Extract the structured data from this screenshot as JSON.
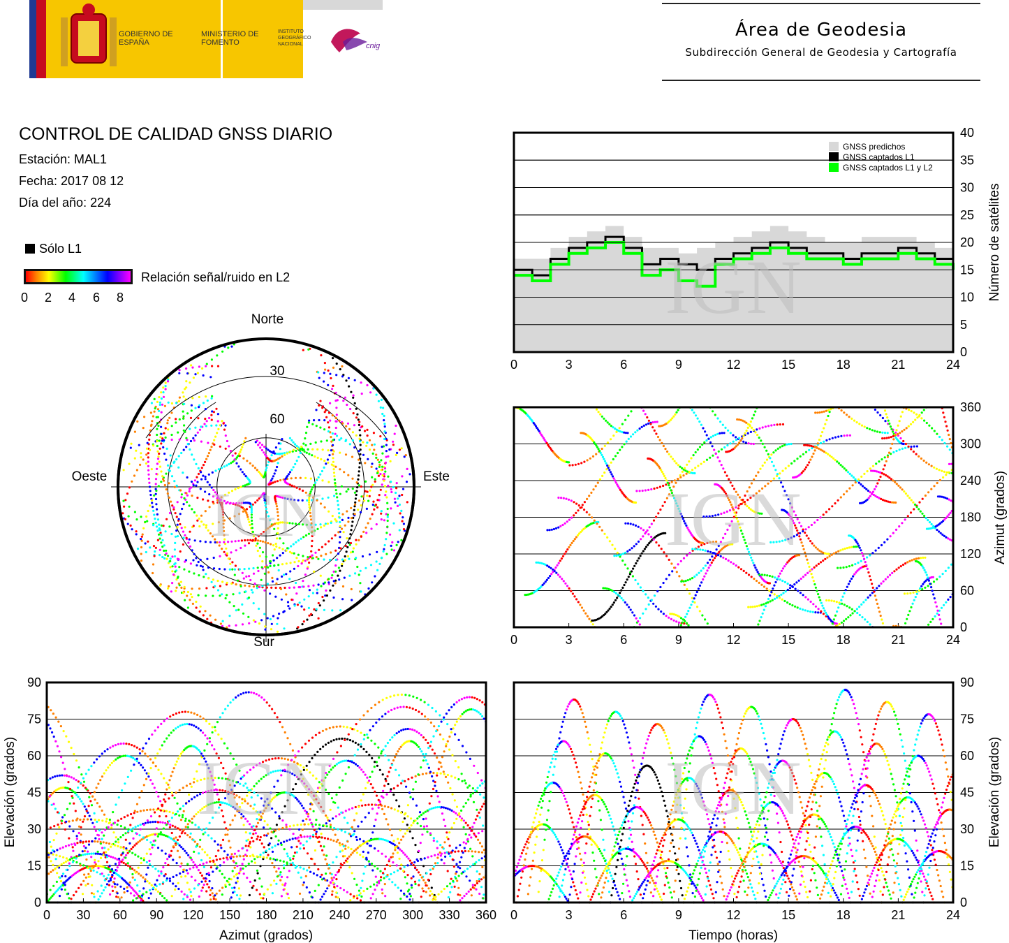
{
  "header": {
    "logo_gobierno": "GOBIERNO DE ESPAÑA",
    "logo_ministerio": "MINISTERIO DE FOMENTO",
    "logo_instituto": "INSTITUTO GEOGRÁFICO NACIONAL",
    "logo_cnig": "cnig",
    "area_title": "Área de Geodesia",
    "area_subtitle": "Subdirección General de Geodesia y Cartografía"
  },
  "info": {
    "title": "CONTROL DE CALIDAD GNSS DIARIO",
    "station": "Estación: MAL1",
    "date": "Fecha: 2017 08 12",
    "doy": "Día del año: 224"
  },
  "legend": {
    "l1_only": "Sólo L1",
    "snr_label": "Relación señal/ruido en L2",
    "snr_ticks": [
      "0",
      "2",
      "4",
      "6",
      "8"
    ]
  },
  "colors": {
    "predicted": "#d8d8d8",
    "l1": "#000000",
    "l1l2": "#00ff00",
    "snr_scale": [
      "#ff0000",
      "#ff8000",
      "#ffff00",
      "#00ff00",
      "#00ffff",
      "#0000ff",
      "#ff00ff"
    ]
  },
  "watermark": "IGN",
  "chart_data": [
    {
      "type": "area",
      "id": "satellite-count",
      "xlabel": "",
      "ylabel": "Número de satélites",
      "xlim": [
        0,
        24
      ],
      "ylim": [
        0,
        40
      ],
      "xticks": [
        0,
        3,
        6,
        9,
        12,
        15,
        18,
        21,
        24
      ],
      "yticks": [
        0,
        5,
        10,
        15,
        20,
        25,
        30,
        35,
        40
      ],
      "grid": true,
      "legend_position": "top-right",
      "x": [
        0,
        1,
        2,
        3,
        4,
        5,
        6,
        7,
        8,
        9,
        10,
        11,
        12,
        13,
        14,
        15,
        16,
        17,
        18,
        19,
        20,
        21,
        22,
        23,
        24
      ],
      "series": [
        {
          "name": "GNSS predichos",
          "values": [
            17,
            17,
            19,
            21,
            22,
            23,
            21,
            19,
            19,
            18,
            19,
            20,
            21,
            22,
            23,
            22,
            21,
            20,
            20,
            21,
            21,
            21,
            20,
            19,
            18
          ]
        },
        {
          "name": "GNSS captados L1",
          "values": [
            15,
            14,
            17,
            19,
            20,
            21,
            19,
            16,
            17,
            16,
            15,
            17,
            18,
            19,
            20,
            19,
            18,
            18,
            17,
            18,
            18,
            19,
            18,
            17,
            16
          ]
        },
        {
          "name": "GNSS captados L1 y L2",
          "values": [
            14,
            13,
            16,
            18,
            19,
            20,
            18,
            14,
            15,
            13,
            12,
            16,
            17,
            18,
            19,
            18,
            17,
            17,
            16,
            17,
            17,
            18,
            17,
            16,
            15
          ]
        }
      ]
    },
    {
      "type": "scatter",
      "id": "skyplot",
      "title_labels": {
        "north": "Norte",
        "south": "Sur",
        "west": "Oeste",
        "east": "Este"
      },
      "ring_labels": [
        "30",
        "60"
      ],
      "description_in_axes": "Azimut vs Elevación (polar)"
    },
    {
      "type": "scatter",
      "id": "azimuth-time",
      "xlabel": "",
      "ylabel": "Azimut (grados)",
      "xlim": [
        0,
        24
      ],
      "ylim": [
        0,
        360
      ],
      "xticks": [
        0,
        3,
        6,
        9,
        12,
        15,
        18,
        21,
        24
      ],
      "yticks": [
        0,
        60,
        120,
        180,
        240,
        300,
        360
      ],
      "grid": true
    },
    {
      "type": "scatter",
      "id": "elevation-azimuth",
      "xlabel": "Azimut (grados)",
      "ylabel": "Elevación (grados)",
      "xlim": [
        0,
        360
      ],
      "ylim": [
        0,
        90
      ],
      "xticks": [
        0,
        30,
        60,
        90,
        120,
        150,
        180,
        210,
        240,
        270,
        300,
        330,
        360
      ],
      "yticks": [
        0,
        15,
        30,
        45,
        60,
        75,
        90
      ],
      "grid": true
    },
    {
      "type": "scatter",
      "id": "elevation-time",
      "xlabel": "Tiempo (horas)",
      "ylabel": "Elevación (grados)",
      "xlim": [
        0,
        24
      ],
      "ylim": [
        0,
        90
      ],
      "xticks": [
        0,
        3,
        6,
        9,
        12,
        15,
        18,
        21,
        24
      ],
      "yticks": [
        0,
        15,
        30,
        45,
        60,
        75,
        90
      ],
      "grid": true
    }
  ]
}
